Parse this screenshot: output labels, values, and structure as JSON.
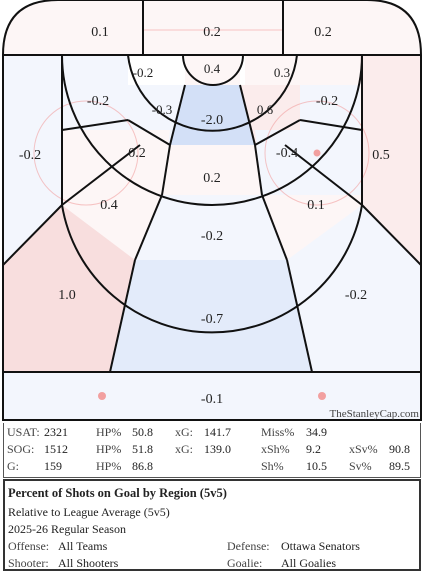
{
  "chart_data": {
    "type": "heatmap",
    "description_values_note": "",
    "regions": [
      {
        "id": "top-left",
        "value": 0.1
      },
      {
        "id": "top-center",
        "value": 0.2
      },
      {
        "id": "top-right",
        "value": 0.2
      },
      {
        "id": "crease-top",
        "value": 0.4
      },
      {
        "id": "inner-left-top",
        "value": -0.2
      },
      {
        "id": "inner-right-top",
        "value": 0.3
      },
      {
        "id": "inner-left",
        "value": -0.3
      },
      {
        "id": "slot-top",
        "value": -2.0
      },
      {
        "id": "inner-right",
        "value": 0.6
      },
      {
        "id": "mid-left-upper",
        "value": -0.2
      },
      {
        "id": "mid-right-upper",
        "value": -0.2
      },
      {
        "id": "far-left",
        "value": -0.2
      },
      {
        "id": "left-circle",
        "value": 0.2
      },
      {
        "id": "right-circle",
        "value": -0.4
      },
      {
        "id": "far-right",
        "value": 0.5
      },
      {
        "id": "slot-mid",
        "value": 0.2
      },
      {
        "id": "left-lower",
        "value": 0.4
      },
      {
        "id": "right-lower",
        "value": 0.1
      },
      {
        "id": "slot-low",
        "value": -0.2
      },
      {
        "id": "point-left",
        "value": 1.0
      },
      {
        "id": "point-center",
        "value": -0.7
      },
      {
        "id": "point-right",
        "value": -0.2
      },
      {
        "id": "blue-line",
        "value": -0.1
      }
    ]
  },
  "credit": "TheStanleyCap.com",
  "stats": {
    "usat_label": "USAT:",
    "usat": "2321",
    "sog_label": "SOG:",
    "sog": "1512",
    "g_label": "G:",
    "g": "159",
    "hp1_label": "HP%",
    "hp1": "50.8",
    "hp2_label": "HP%",
    "hp2": "51.8",
    "hp3_label": "HP%",
    "hp3": "86.8",
    "xg1_label": "xG:",
    "xg1": "141.7",
    "xg2_label": "xG:",
    "xg2": "139.0",
    "miss_label": "Miss%",
    "miss": "34.9",
    "xsh_label": "xSh%",
    "xsh": "9.2",
    "sh_label": "Sh%",
    "sh": "10.5",
    "xsv_label": "xSv%",
    "xsv": "90.8",
    "sv_label": "Sv%",
    "sv": "89.5"
  },
  "info": {
    "title": "Percent of Shots on Goal by Region (5v5)",
    "subtitle": "Relative to League Average (5v5)",
    "season": "2025-26 Regular Season",
    "offense_label": "Offense:",
    "offense": "All Teams",
    "shooter_label": "Shooter:",
    "shooter": "All Shooters",
    "defense_label": "Defense:",
    "defense": "Ottawa Senators",
    "goalie_label": "Goalie:",
    "goalie": "All Goalies"
  },
  "colors": {
    "positive": "#f4c7c7",
    "negative": "#c9d7f2",
    "line": "#111111",
    "rink_red": "#f2a0a0"
  }
}
